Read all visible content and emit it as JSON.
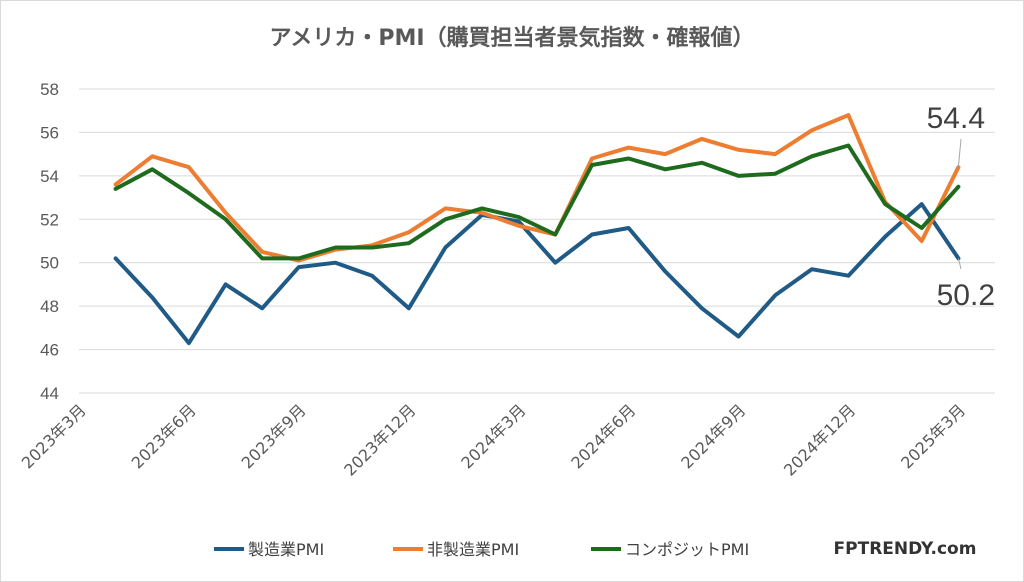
{
  "chart_data": {
    "type": "line",
    "title": "アメリカ・PMI（購買担当者景気指数・確報値）",
    "xlabel": "",
    "ylabel": "",
    "ylim": [
      44,
      58
    ],
    "yticks": [
      "44",
      "46",
      "48",
      "50",
      "52",
      "54",
      "56",
      "58"
    ],
    "grid": true,
    "legend_position": "bottom",
    "x": [
      "2023-04",
      "2023-05",
      "2023-06",
      "2023-07",
      "2023-08",
      "2023-09",
      "2023-10",
      "2023-11",
      "2023-12",
      "2024-01",
      "2024-02",
      "2024-03",
      "2024-04",
      "2024-05",
      "2024-06",
      "2024-07",
      "2024-08",
      "2024-09",
      "2024-10",
      "2024-11",
      "2024-12",
      "2025-01",
      "2025-02",
      "2025-03"
    ],
    "xtick_labels": [
      "2023年3月",
      "2023年6月",
      "2023年9月",
      "2023年12月",
      "2024年3月",
      "2024年6月",
      "2024年9月",
      "2024年12月",
      "2025年3月"
    ],
    "series": [
      {
        "name": "製造業PMI",
        "color": "#1f5b86",
        "values": [
          50.2,
          48.4,
          46.3,
          49.0,
          47.9,
          49.8,
          50.0,
          49.4,
          47.9,
          50.7,
          52.2,
          51.9,
          50.0,
          51.3,
          51.6,
          49.6,
          47.9,
          46.6,
          48.5,
          49.7,
          49.4,
          51.2,
          52.7,
          50.2
        ]
      },
      {
        "name": "非製造業PMI",
        "color": "#ed7d31",
        "values": [
          53.6,
          54.9,
          54.4,
          52.3,
          50.5,
          50.1,
          50.6,
          50.8,
          51.4,
          52.5,
          52.3,
          51.7,
          51.3,
          54.8,
          55.3,
          55.0,
          55.7,
          55.2,
          55.0,
          56.1,
          56.8,
          52.8,
          51.0,
          54.4
        ]
      },
      {
        "name": "コンポジットPMI",
        "color": "#1e6b1e",
        "values": [
          53.4,
          54.3,
          53.2,
          52.0,
          50.2,
          50.2,
          50.7,
          50.7,
          50.9,
          52.0,
          52.5,
          52.1,
          51.3,
          54.5,
          54.8,
          54.3,
          54.6,
          54.0,
          54.1,
          54.9,
          55.4,
          52.7,
          51.6,
          53.5
        ]
      }
    ],
    "annotations": [
      "54.4",
      "50.2"
    ]
  },
  "brand": "FPTRENDY.com"
}
